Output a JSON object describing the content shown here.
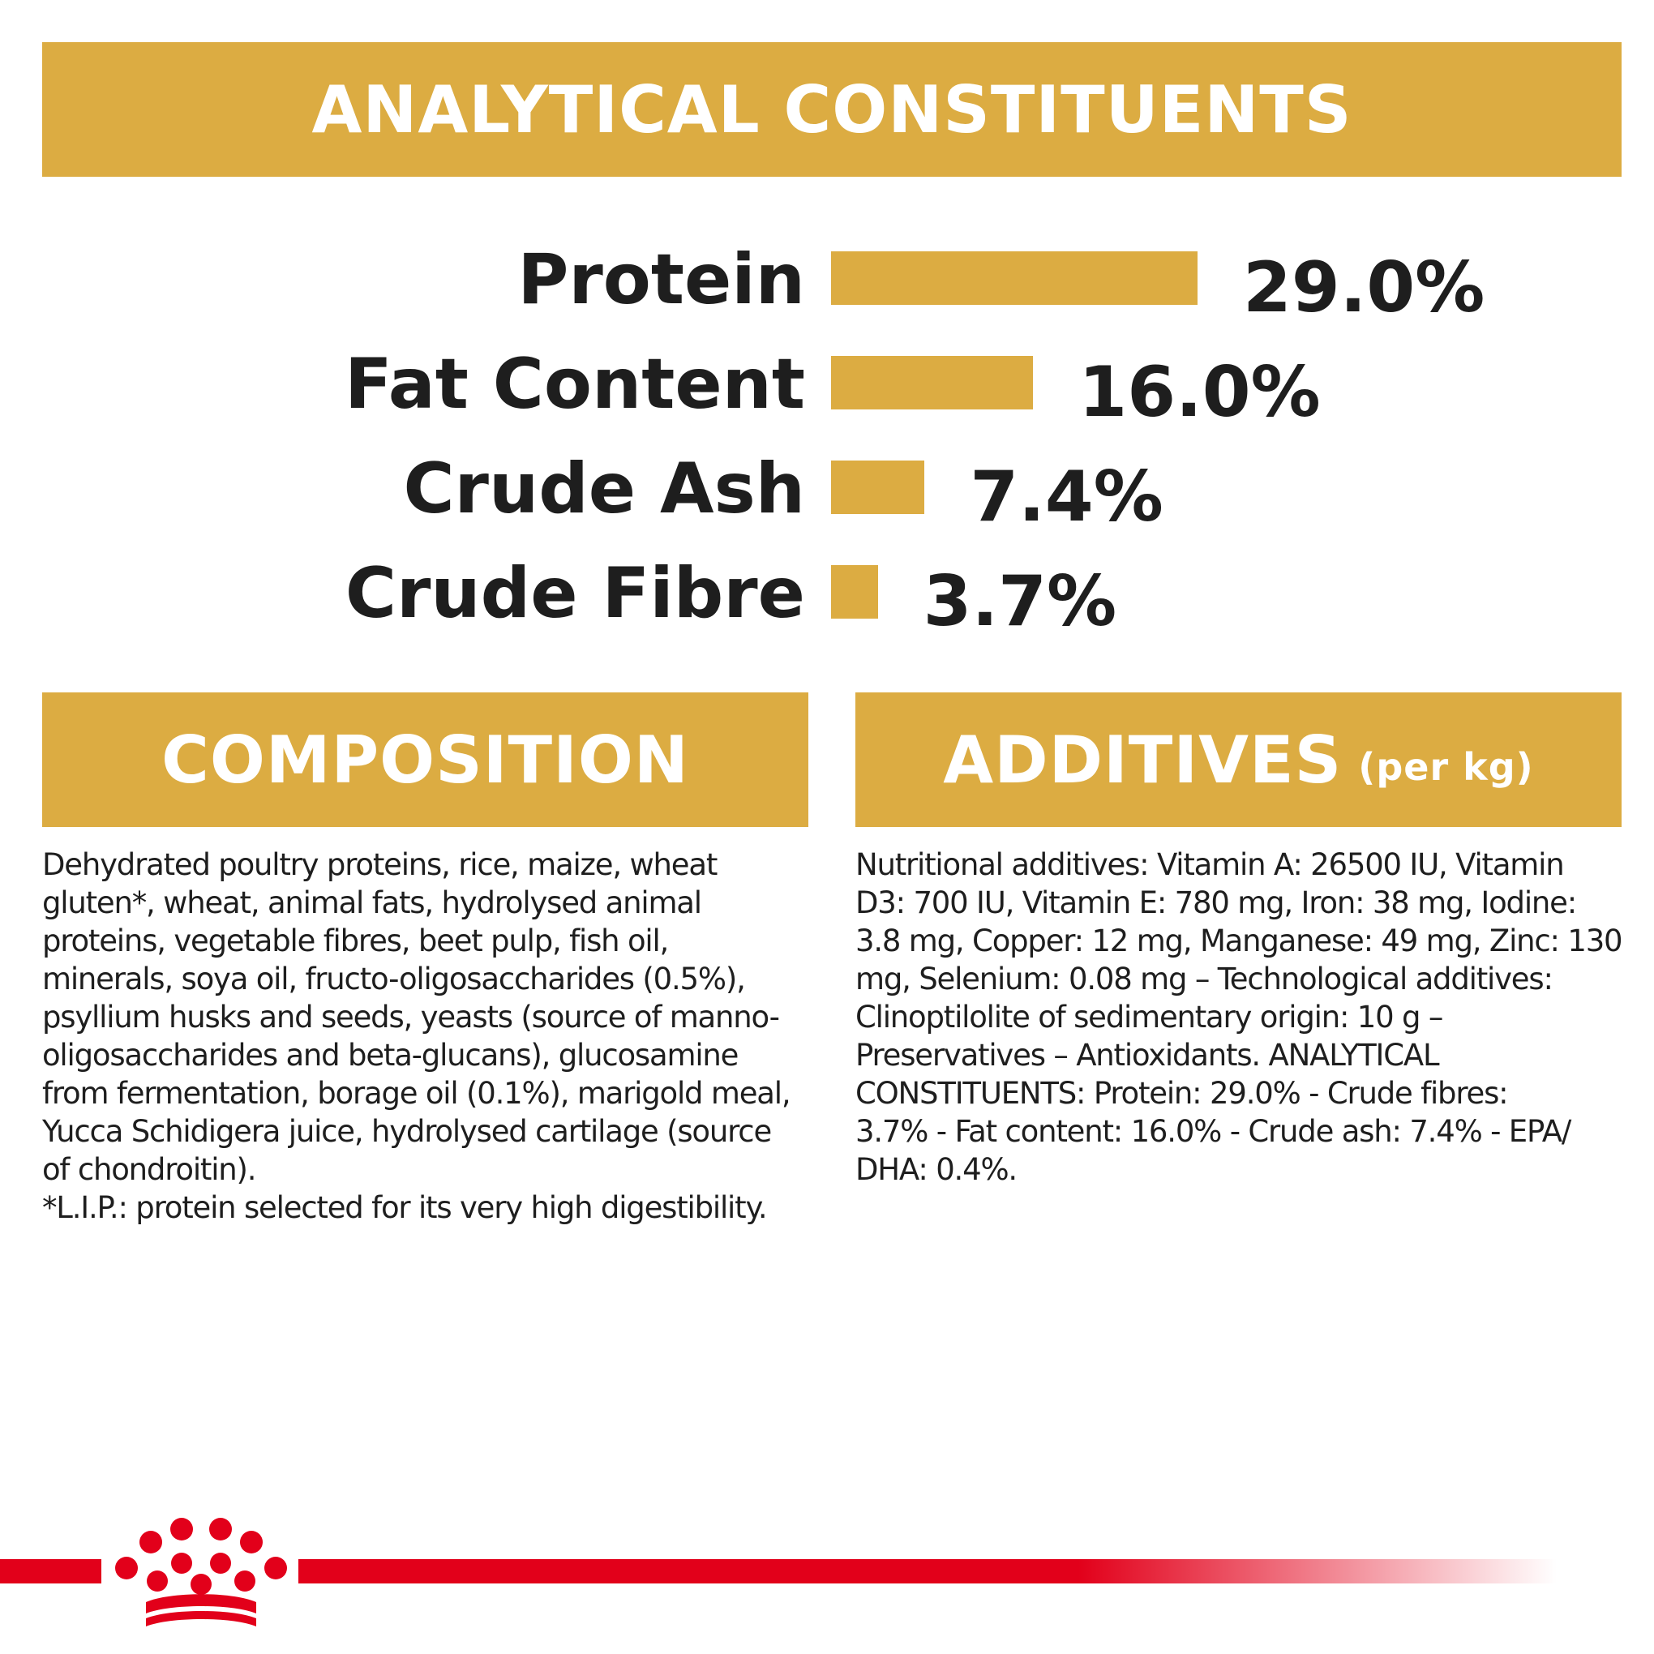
{
  "headers": {
    "analytical": "ANALYTICAL CONSTITUENTS",
    "composition": "COMPOSITION",
    "additives": "ADDITIVES",
    "additives_unit": "(per kg)"
  },
  "chart_data": {
    "type": "bar",
    "orientation": "horizontal",
    "title": "ANALYTICAL CONSTITUENTS",
    "categories": [
      "Protein",
      "Fat Content",
      "Crude Ash",
      "Crude Fibre"
    ],
    "values": [
      29.0,
      16.0,
      7.4,
      3.7
    ],
    "value_labels": [
      "29.0%",
      "16.0%",
      "7.4%",
      "3.7%"
    ],
    "unit": "%",
    "bar_color": "#dcac42",
    "xlabel": "",
    "ylabel": "",
    "grid": false,
    "legend": "none"
  },
  "composition_text": "Dehydrated poultry proteins, rice, maize, wheat\ngluten*, wheat, animal fats, hydrolysed animal\nproteins, vegetable fibres, beet pulp, fish oil,\nminerals, soya oil, fructo-oligosaccharides (0.5%),\npsyllium husks and seeds, yeasts (source of manno-\noligosaccharides and beta-glucans), glucosamine\nfrom fermentation, borage oil (0.1%), marigold meal,\nYucca Schidigera juice, hydrolysed cartilage (source\nof chondroitin).\n*L.I.P.: protein selected for its very high digestibility.",
  "additives_text": "Nutritional additives: Vitamin A: 26500 IU, Vitamin\nD3: 700 IU, Vitamin E: 780 mg, Iron: 38 mg, Iodine:\n3.8 mg, Copper: 12 mg, Manganese: 49 mg, Zinc: 130\nmg, Selenium: 0.08 mg – Technological additives:\nClinoptilolite of sedimentary origin: 10 g –\nPreservatives – Antioxidants. ANALYTICAL\nCONSTITUENTS: Protein: 29.0% - Crude fibres:\n3.7% - Fat content: 16.0% - Crude ash: 7.4% - EPA/\nDHA: 0.4%.",
  "colors": {
    "accent": "#dcac42",
    "brand_red": "#e2001a",
    "text": "#1e1e1e"
  },
  "icons": {
    "brand_logo": "crown-logo-icon"
  }
}
